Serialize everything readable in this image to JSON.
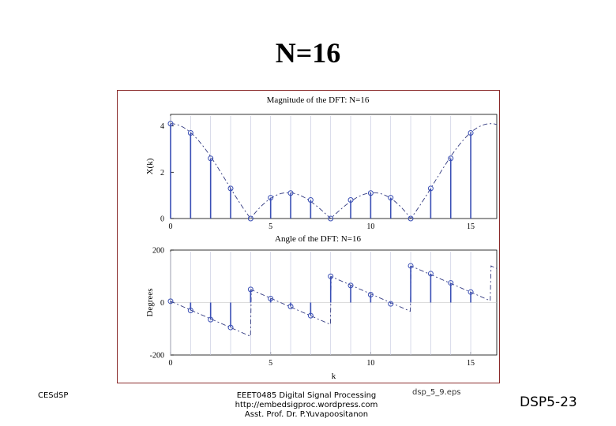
{
  "slide": {
    "title": "N=16",
    "footer_left": "CESdSP",
    "footer_center_lines": [
      "EEET0485 Digital Signal Processing",
      "http://embedsigproc.wordpress.com",
      "Asst. Prof. Dr. P.Yuvapoositanon"
    ],
    "footer_eps": "dsp_5_9.eps",
    "slide_number": "DSP5-23"
  },
  "chart_data": [
    {
      "type": "stem",
      "title": "Magnitude of the DFT: N=16",
      "xlabel": "",
      "ylabel": "X(k)",
      "x_ticks": [
        0,
        5,
        10,
        15
      ],
      "y_ticks": [
        0,
        2,
        4
      ],
      "xlim": [
        0,
        16.3
      ],
      "ylim": [
        0,
        4.5
      ],
      "k": [
        0,
        1,
        2,
        3,
        4,
        5,
        6,
        7,
        8,
        9,
        10,
        11,
        12,
        13,
        14,
        15
      ],
      "values": [
        4.1,
        3.7,
        2.6,
        1.3,
        0.0,
        0.9,
        1.1,
        0.8,
        0.0,
        0.8,
        1.1,
        0.9,
        0.0,
        1.3,
        2.6,
        3.7
      ],
      "envelope": "dashed continuous DTFT magnitude"
    },
    {
      "type": "stem",
      "title": "Angle of the DFT: N=16",
      "xlabel": "k",
      "ylabel": "Degrees",
      "x_ticks": [
        0,
        5,
        10,
        15
      ],
      "y_ticks": [
        -200,
        0,
        200
      ],
      "xlim": [
        0,
        16.3
      ],
      "ylim": [
        -200,
        200
      ],
      "k": [
        0,
        1,
        2,
        3,
        4,
        5,
        6,
        7,
        8,
        9,
        10,
        11,
        12,
        13,
        14,
        15
      ],
      "values": [
        5,
        -30,
        -65,
        -95,
        50,
        15,
        -15,
        -50,
        100,
        65,
        30,
        -5,
        140,
        110,
        75,
        40
      ],
      "envelope": "dashed continuous DTFT phase"
    }
  ]
}
